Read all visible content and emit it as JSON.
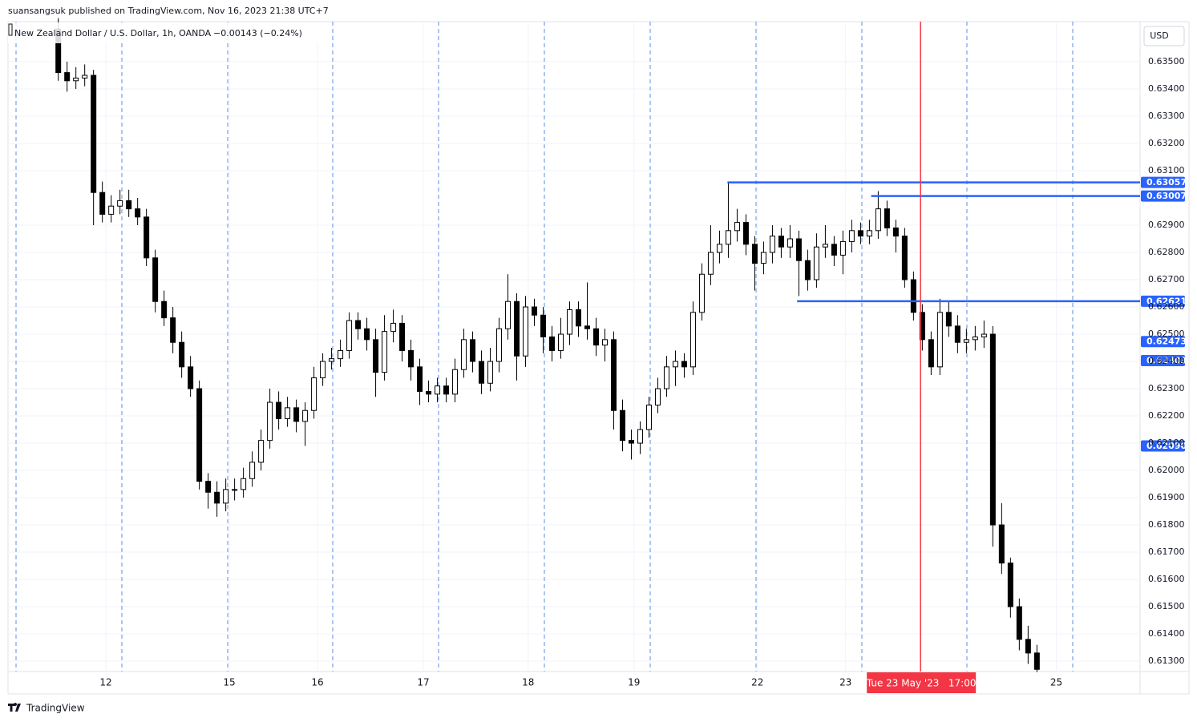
{
  "header": {
    "publisher": "suansangsuk published on TradingView.com, Nov 16, 2023 21:38 UTC+7",
    "footer": "TradingView"
  },
  "chart_data": {
    "type": "candlestick",
    "title": "New Zealand Dollar / U.S. Dollar, 1h, OANDA",
    "change": "−0.00143 (−0.24%)",
    "currency": "USD",
    "up_color": "#ffffff",
    "down_color": "#000000",
    "wick_color": "#000000",
    "level_color": "#2962ff",
    "crosshair_color": "#f23645",
    "grid": true,
    "xlim": [
      -5.7,
      122.7
    ],
    "xticks": [
      {
        "value": 5.4,
        "label": "12"
      },
      {
        "value": 19.4,
        "label": "15"
      },
      {
        "value": 29.4,
        "label": "16"
      },
      {
        "value": 41.4,
        "label": "17"
      },
      {
        "value": 53.3,
        "label": "18"
      },
      {
        "value": 65.3,
        "label": "19"
      },
      {
        "value": 79.3,
        "label": "22"
      },
      {
        "value": 89.3,
        "label": "23"
      },
      {
        "value": 113.2,
        "label": "25"
      }
    ],
    "ylim": [
      0.61262,
      0.63647
    ],
    "yticks": [
      {
        "value": 0.613,
        "label": "0.61300"
      },
      {
        "value": 0.614,
        "label": "0.61400"
      },
      {
        "value": 0.615,
        "label": "0.61500"
      },
      {
        "value": 0.616,
        "label": "0.61600"
      },
      {
        "value": 0.617,
        "label": "0.61700"
      },
      {
        "value": 0.618,
        "label": "0.61800"
      },
      {
        "value": 0.619,
        "label": "0.61900"
      },
      {
        "value": 0.62,
        "label": "0.62000"
      },
      {
        "value": 0.621,
        "label": "0.62100"
      },
      {
        "value": 0.622,
        "label": "0.62200"
      },
      {
        "value": 0.623,
        "label": "0.62300"
      },
      {
        "value": 0.624,
        "label": "0.62400"
      },
      {
        "value": 0.625,
        "label": "0.62500"
      },
      {
        "value": 0.626,
        "label": "0.62600"
      },
      {
        "value": 0.627,
        "label": "0.62700"
      },
      {
        "value": 0.628,
        "label": "0.62800"
      },
      {
        "value": 0.629,
        "label": "0.62900"
      },
      {
        "value": 0.631,
        "label": "0.63100"
      },
      {
        "value": 0.632,
        "label": "0.63200"
      },
      {
        "value": 0.633,
        "label": "0.63300"
      },
      {
        "value": 0.634,
        "label": "0.63400"
      },
      {
        "value": 0.635,
        "label": "0.63500"
      }
    ],
    "open": [
      0.6362,
      0.6346,
      0.6343,
      0.6344,
      0.6345,
      0.6302,
      0.6294,
      0.6297,
      0.6299,
      0.6296,
      0.6293,
      0.6278,
      0.6262,
      0.6256,
      0.6247,
      0.6238,
      0.623,
      0.6196,
      0.6192,
      0.6188,
      0.6193,
      0.6193,
      0.6197,
      0.6203,
      0.6211,
      0.6225,
      0.6219,
      0.6223,
      0.6218,
      0.6222,
      0.6234,
      0.624,
      0.6241,
      0.6244,
      0.6255,
      0.6252,
      0.6248,
      0.6236,
      0.6251,
      0.6254,
      0.6244,
      0.6238,
      0.6229,
      0.6228,
      0.6231,
      0.6228,
      0.6237,
      0.6248,
      0.624,
      0.6232,
      0.624,
      0.6252,
      0.6262,
      0.6242,
      0.626,
      0.6257,
      0.6249,
      0.6244,
      0.625,
      0.6259,
      0.6253,
      0.6252,
      0.6246,
      0.6248,
      0.6222,
      0.6211,
      0.621,
      0.6215,
      0.6224,
      0.623,
      0.6238,
      0.624,
      0.6238,
      0.6258,
      0.6272,
      0.628,
      0.6283,
      0.6288,
      0.6291,
      0.6283,
      0.6276,
      0.628,
      0.6286,
      0.6282,
      0.6285,
      0.6277,
      0.627,
      0.6282,
      0.6283,
      0.6279,
      0.6284,
      0.6288,
      0.6286,
      0.6288,
      0.6296,
      0.6289,
      0.6286,
      0.627,
      0.6258,
      0.6248,
      0.6238,
      0.6258,
      0.6253,
      0.6247,
      0.6248,
      0.6249,
      0.625,
      0.618,
      0.6166,
      0.615,
      0.6138,
      0.6133
    ],
    "high": [
      0.6366,
      0.635,
      0.6348,
      0.6349,
      0.6347,
      0.6306,
      0.6301,
      0.6303,
      0.6303,
      0.63,
      0.6296,
      0.6281,
      0.6266,
      0.626,
      0.6251,
      0.6242,
      0.6233,
      0.6199,
      0.6196,
      0.6197,
      0.6197,
      0.6201,
      0.6207,
      0.6215,
      0.623,
      0.6229,
      0.6227,
      0.6226,
      0.6225,
      0.6238,
      0.6243,
      0.6245,
      0.6248,
      0.6258,
      0.6258,
      0.6256,
      0.6252,
      0.6257,
      0.6259,
      0.6257,
      0.6248,
      0.6241,
      0.6233,
      0.6234,
      0.6234,
      0.6241,
      0.6252,
      0.6251,
      0.6244,
      0.6245,
      0.6256,
      0.6272,
      0.6265,
      0.6264,
      0.6263,
      0.626,
      0.6253,
      0.6256,
      0.6262,
      0.6262,
      0.6269,
      0.6256,
      0.6252,
      0.6251,
      0.6226,
      0.6215,
      0.6218,
      0.6227,
      0.6234,
      0.6242,
      0.6244,
      0.6243,
      0.6262,
      0.6276,
      0.629,
      0.6288,
      0.63057,
      0.6296,
      0.6294,
      0.6286,
      0.6284,
      0.629,
      0.6289,
      0.629,
      0.6288,
      0.6281,
      0.6287,
      0.629,
      0.6286,
      0.6288,
      0.6292,
      0.6291,
      0.6292,
      0.63025,
      0.6299,
      0.6292,
      0.6289,
      0.6273,
      0.6261,
      0.6251,
      0.6263,
      0.6262,
      0.6257,
      0.6252,
      0.6253,
      0.6255,
      0.6253,
      0.6188,
      0.6168,
      0.6153,
      0.6143,
      0.6136
    ],
    "low": [
      0.6343,
      0.6339,
      0.634,
      0.6341,
      0.629,
      0.6291,
      0.6291,
      0.6294,
      0.6293,
      0.629,
      0.6275,
      0.6258,
      0.6253,
      0.6243,
      0.6234,
      0.6227,
      0.6193,
      0.6186,
      0.6183,
      0.6185,
      0.6189,
      0.619,
      0.6194,
      0.62,
      0.6208,
      0.6215,
      0.6216,
      0.6214,
      0.6209,
      0.6219,
      0.6231,
      0.6237,
      0.6238,
      0.6241,
      0.6248,
      0.6244,
      0.6227,
      0.6233,
      0.6247,
      0.624,
      0.6233,
      0.6224,
      0.6225,
      0.6225,
      0.6225,
      0.6225,
      0.6234,
      0.6236,
      0.6228,
      0.6229,
      0.6236,
      0.6248,
      0.6233,
      0.6238,
      0.6253,
      0.6243,
      0.624,
      0.6241,
      0.6246,
      0.6249,
      0.6248,
      0.6242,
      0.624,
      0.6215,
      0.6207,
      0.6204,
      0.6206,
      0.6212,
      0.6221,
      0.6227,
      0.6231,
      0.6234,
      0.6235,
      0.6255,
      0.6268,
      0.6276,
      0.6278,
      0.6284,
      0.6279,
      0.6266,
      0.6272,
      0.6276,
      0.6278,
      0.6278,
      0.6264,
      0.6266,
      0.6267,
      0.6278,
      0.6275,
      0.6272,
      0.628,
      0.6283,
      0.6283,
      0.6285,
      0.6286,
      0.628,
      0.6267,
      0.6255,
      0.6244,
      0.6235,
      0.6235,
      0.6249,
      0.6243,
      0.6243,
      0.6244,
      0.6245,
      0.6172,
      0.6162,
      0.6146,
      0.6134,
      0.6129,
      0.6126
    ],
    "close": [
      0.6346,
      0.6343,
      0.6344,
      0.6345,
      0.6302,
      0.6294,
      0.6297,
      0.6299,
      0.6296,
      0.6293,
      0.6278,
      0.6262,
      0.6256,
      0.6247,
      0.6238,
      0.623,
      0.6196,
      0.6192,
      0.6188,
      0.6193,
      0.6193,
      0.6197,
      0.6203,
      0.6211,
      0.6225,
      0.6219,
      0.6223,
      0.6218,
      0.6222,
      0.6234,
      0.624,
      0.6241,
      0.6244,
      0.6255,
      0.6252,
      0.6248,
      0.6236,
      0.6251,
      0.6254,
      0.6244,
      0.6238,
      0.6229,
      0.6228,
      0.6231,
      0.6228,
      0.6237,
      0.6248,
      0.624,
      0.6232,
      0.624,
      0.6252,
      0.6262,
      0.6242,
      0.626,
      0.6257,
      0.6249,
      0.6244,
      0.625,
      0.6259,
      0.6253,
      0.6252,
      0.6246,
      0.6248,
      0.6222,
      0.6211,
      0.621,
      0.6215,
      0.6224,
      0.623,
      0.6238,
      0.624,
      0.6238,
      0.6258,
      0.6272,
      0.628,
      0.6283,
      0.6288,
      0.6291,
      0.6283,
      0.6276,
      0.628,
      0.6286,
      0.6282,
      0.6285,
      0.6277,
      0.627,
      0.6282,
      0.6283,
      0.6279,
      0.6284,
      0.6288,
      0.6286,
      0.6288,
      0.6296,
      0.6289,
      0.6286,
      0.627,
      0.6258,
      0.6248,
      0.6238,
      0.6258,
      0.6253,
      0.6247,
      0.6248,
      0.6249,
      0.625,
      0.618,
      0.6166,
      0.615,
      0.6138,
      0.6133,
      0.6127
    ],
    "levels": [
      {
        "value": 0.63057,
        "start": 75.9
      },
      {
        "value": 0.63007,
        "start": 92.2
      },
      {
        "value": 0.62621,
        "start": 83.8
      }
    ],
    "tags": [
      0.62473,
      0.62403,
      {
        "value": 0.6209,
        "label": "0.62090"
      }
    ],
    "crosshair": {
      "x": 97.8,
      "label": "Tue 23 May '23   17:00"
    }
  }
}
